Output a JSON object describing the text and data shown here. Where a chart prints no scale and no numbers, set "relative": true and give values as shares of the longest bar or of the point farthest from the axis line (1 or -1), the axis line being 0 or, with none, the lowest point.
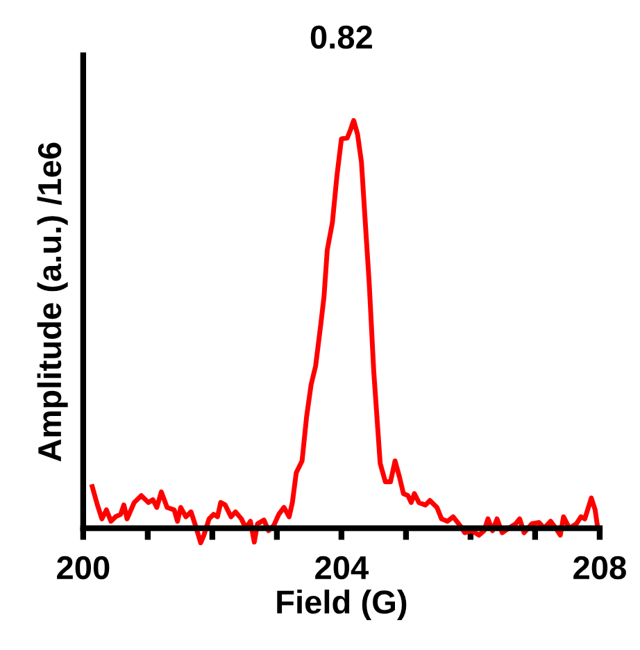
{
  "chart_data": {
    "type": "line",
    "title": "0.82",
    "xlabel": "Field (G)",
    "ylabel": "Amplitude (a.u.) /1e6",
    "relative": true,
    "xlim": [
      200,
      208
    ],
    "xticks": [
      200,
      {
        "value": 201,
        "label": null
      },
      {
        "value": 202,
        "label": null
      },
      {
        "value": 203,
        "label": null
      },
      204,
      {
        "value": 205,
        "label": null
      },
      {
        "value": 206,
        "label": null
      },
      {
        "value": 207,
        "label": null
      },
      208
    ],
    "grid": false,
    "marker": "none",
    "line_style": "solid",
    "series": [
      {
        "color": "#ff0000",
        "x": [
          200.14,
          200.22,
          200.29,
          200.36,
          200.43,
          200.5,
          200.58,
          200.63,
          200.68,
          200.79,
          200.9,
          201.01,
          201.08,
          201.14,
          201.21,
          201.3,
          201.41,
          201.46,
          201.51,
          201.59,
          201.67,
          201.74,
          201.82,
          201.87,
          201.95,
          202.02,
          202.08,
          202.13,
          202.2,
          202.29,
          202.36,
          202.45,
          202.52,
          202.59,
          202.65,
          202.7,
          202.8,
          202.87,
          202.95,
          203.03,
          203.11,
          203.19,
          203.24,
          203.3,
          203.39,
          203.46,
          203.53,
          203.6,
          203.68,
          203.73,
          203.78,
          203.86,
          203.93,
          204.0,
          204.09,
          204.14,
          204.19,
          204.25,
          204.31,
          204.36,
          204.43,
          204.5,
          204.6,
          204.68,
          204.76,
          204.83,
          204.9,
          204.96,
          205.03,
          205.08,
          205.13,
          205.2,
          205.3,
          205.37,
          205.48,
          205.55,
          205.64,
          205.73,
          205.84,
          205.91,
          206.02,
          206.13,
          206.21,
          206.27,
          206.34,
          206.41,
          206.49,
          206.59,
          206.7,
          206.76,
          206.83,
          206.95,
          207.06,
          207.14,
          207.24,
          207.32,
          207.39,
          207.44,
          207.53,
          207.64,
          207.71,
          207.77,
          207.87,
          207.93,
          207.96,
          207.99
        ],
        "values": [
          0.102,
          0.057,
          0.023,
          0.045,
          0.017,
          0.028,
          0.034,
          0.057,
          0.023,
          0.063,
          0.08,
          0.063,
          0.07,
          0.051,
          0.089,
          0.051,
          0.045,
          0.017,
          0.051,
          0.028,
          0.04,
          0.006,
          -0.036,
          -0.017,
          0.023,
          0.034,
          0.028,
          0.063,
          0.057,
          0.028,
          0.04,
          0.023,
          0.0,
          0.017,
          -0.034,
          0.011,
          0.02,
          -0.006,
          0.006,
          0.034,
          0.051,
          0.028,
          0.063,
          0.136,
          0.165,
          0.273,
          0.352,
          0.398,
          0.5,
          0.568,
          0.682,
          0.75,
          0.864,
          0.955,
          0.957,
          0.977,
          1.0,
          0.966,
          0.898,
          0.773,
          0.602,
          0.386,
          0.159,
          0.114,
          0.114,
          0.165,
          0.125,
          0.085,
          0.08,
          0.063,
          0.085,
          0.063,
          0.057,
          0.068,
          0.051,
          0.023,
          0.017,
          0.028,
          0.006,
          -0.011,
          -0.006,
          -0.017,
          -0.006,
          0.023,
          -0.006,
          0.023,
          -0.011,
          0.0,
          0.011,
          0.023,
          -0.011,
          0.011,
          0.014,
          0.0,
          0.017,
          0.0,
          -0.017,
          0.028,
          0.0,
          0.011,
          0.028,
          0.023,
          0.074,
          0.045,
          0.011,
          0.0
        ]
      }
    ]
  }
}
